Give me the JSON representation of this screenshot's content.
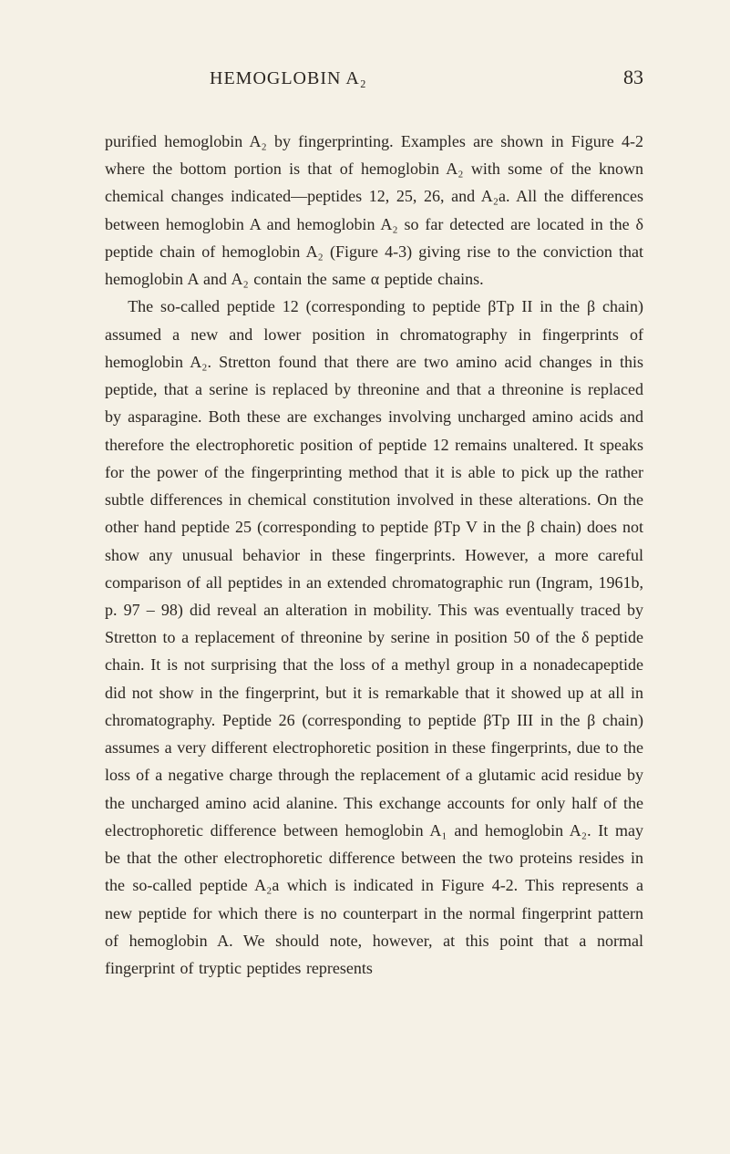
{
  "header": {
    "title": "HEMOGLOBIN A₂",
    "page_number": "83"
  },
  "paragraphs": {
    "p1": "purified hemoglobin A₂ by fingerprinting. Examples are shown in Figure 4-2 where the bottom portion is that of hemoglobin A₂ with some of the known chemical changes indicated—peptides 12, 25, 26, and A₂a. All the differences between hemoglobin A and hemoglobin A₂ so far detected are located in the δ peptide chain of hemoglobin A₂ (Figure 4-3) giving rise to the conviction that hemoglobin A and A₂ contain the same α peptide chains.",
    "p2": "The so-called peptide 12 (corresponding to peptide βTp II in the β chain) assumed a new and lower position in chromatography in finger­prints of hemoglobin A₂. Stretton found that there are two amino acid changes in this peptide, that a serine is replaced by threonine and that a threonine is replaced by asparagine. Both these are exchanges involving uncharged amino acids and therefore the electrophoretic position of peptide 12 remains unaltered. It speaks for the power of the fingerprinting method that it is able to pick up the rather subtle differences in chemical constitution involved in these alterations. On the other hand peptide 25 (corresponding to peptide βTp V in the β chain) does not show any unusual behavior in these fingerprints. However, a more careful comparison of all peptides in an extended chromatographic run (Ingram, 1961b, p. 97 – 98) did reveal an alteration in mobility. This was eventually traced by Stretton to a replacement of threonine by serine in position 50 of the δ peptide chain. It is not surprising that the loss of a methyl group in a nonadecapeptide did not show in the fingerprint, but it is remarkable that it showed up at all in chromatography. Peptide 26 (corresponding to peptide βTp III in the β chain) assumes a very different electrophoretic position in these fingerprints, due to the loss of a negative charge through the replacement of a glutamic acid residue by the uncharged amino acid alanine. This exchange accounts for only half of the electrophoretic difference between hemoglobin A₁ and hemoglobin A₂. It may be that the other electrophoretic difference between the two proteins resides in the so-called peptide A₂a which is indicated in Figure 4-2. This represents a new peptide for which there is no counterpart in the normal fingerprint pattern of hemoglobin A. We should note, however, at this point that a normal fingerprint of tryptic peptides represents"
  },
  "styling": {
    "background_color": "#f5f1e6",
    "text_color": "#2a2520",
    "font_family": "Georgia, 'Times New Roman', serif",
    "body_font_size": 18,
    "header_font_size": 20,
    "page_number_font_size": 22,
    "line_height": 1.68
  }
}
